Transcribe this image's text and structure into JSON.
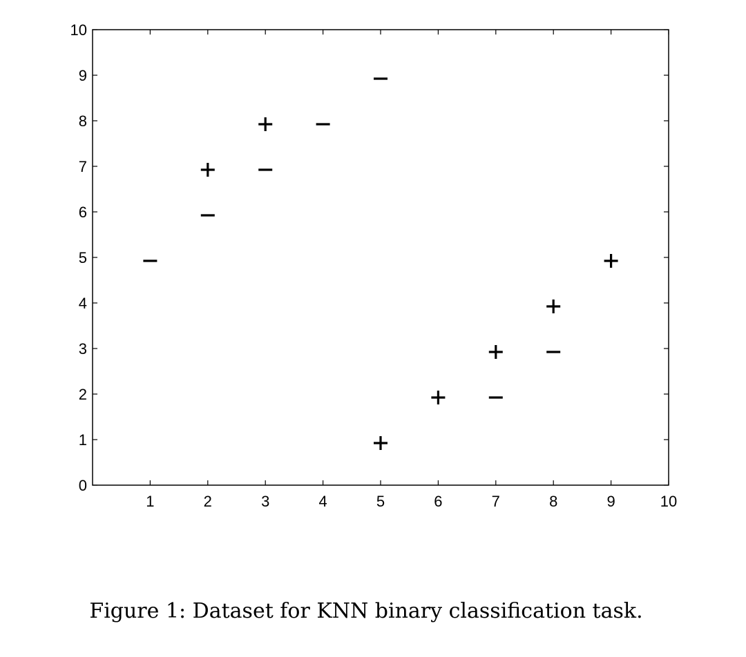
{
  "figure": {
    "caption": "Figure 1: Dataset for KNN binary classification task."
  },
  "chart_data": {
    "type": "scatter",
    "title": "",
    "xlabel": "",
    "ylabel": "",
    "xlim": [
      0,
      10
    ],
    "ylim": [
      0,
      10
    ],
    "xticks": [
      1,
      2,
      3,
      4,
      5,
      6,
      7,
      8,
      9,
      10
    ],
    "yticks": [
      0,
      1,
      2,
      3,
      4,
      5,
      6,
      7,
      8,
      9,
      10
    ],
    "grid": false,
    "legend": "none",
    "colors": {
      "axis": "#000000",
      "marker": "#000000"
    },
    "series": [
      {
        "marker": "+",
        "points": [
          {
            "x": 2,
            "y": 7
          },
          {
            "x": 3,
            "y": 8
          },
          {
            "x": 5,
            "y": 1
          },
          {
            "x": 6,
            "y": 2
          },
          {
            "x": 7,
            "y": 3
          },
          {
            "x": 8,
            "y": 4
          },
          {
            "x": 9,
            "y": 5
          }
        ]
      },
      {
        "marker": "-",
        "points": [
          {
            "x": 1,
            "y": 5
          },
          {
            "x": 2,
            "y": 6
          },
          {
            "x": 3,
            "y": 7
          },
          {
            "x": 4,
            "y": 8
          },
          {
            "x": 5,
            "y": 9
          },
          {
            "x": 7,
            "y": 2
          },
          {
            "x": 8,
            "y": 3
          }
        ]
      }
    ]
  }
}
